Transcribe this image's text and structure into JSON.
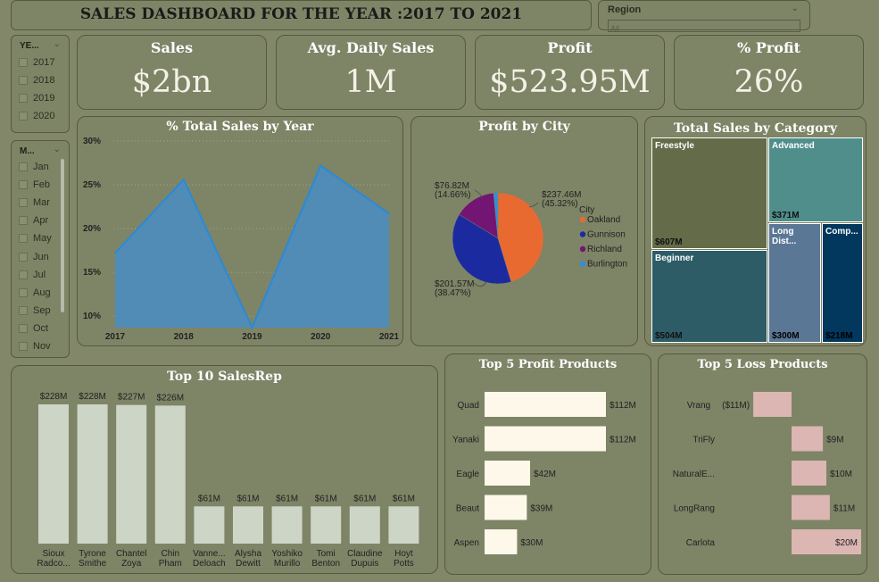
{
  "header": {
    "title": "SALES DASHBOARD FOR THE YEAR :2017 TO 2021"
  },
  "region": {
    "label": "Region",
    "value": "All"
  },
  "year_slicer": {
    "title": "YE...",
    "items": [
      "2017",
      "2018",
      "2019",
      "2020"
    ]
  },
  "month_slicer": {
    "title": "M...",
    "items": [
      "Jan",
      "Feb",
      "Mar",
      "Apr",
      "May",
      "Jun",
      "Jul",
      "Aug",
      "Sep",
      "Oct",
      "Nov"
    ]
  },
  "kpis": [
    {
      "title": "Sales",
      "value": "$2bn"
    },
    {
      "title": "Avg. Daily Sales",
      "value": "1M"
    },
    {
      "title": "Profit",
      "value": "$523.95M"
    },
    {
      "title": "% Profit",
      "value": "26%"
    }
  ],
  "colors": {
    "area": "#4f8cbc",
    "area_line": "#2a8ad8",
    "pie_oakland": "#e96a31",
    "pie_gunnison": "#1c2aa0",
    "pie_richland": "#731572",
    "pie_burlington": "#2e8fe0",
    "bars": "#cdd6c6",
    "profit_bars": "#fdf8ea",
    "loss_bars": "#dbb6b2"
  },
  "chart_data": [
    {
      "type": "area",
      "title": "% Total Sales by Year",
      "x": [
        "2017",
        "2018",
        "2019",
        "2020",
        "2021"
      ],
      "values": [
        17.2,
        25.6,
        8.7,
        27.2,
        21.7
      ],
      "ylim": [
        8.7,
        30
      ],
      "yticks": [
        "30%",
        "25%",
        "20%",
        "15%",
        "10%"
      ],
      "ytick_values": [
        30,
        25,
        20,
        15,
        10
      ],
      "grid": true
    },
    {
      "type": "pie",
      "title": "Profit by City",
      "legend_title": "City",
      "legend_position": "right",
      "slices": [
        {
          "name": "Oakland",
          "value": 237.46,
          "label": "$237.46M",
          "pct": "(45.32%)"
        },
        {
          "name": "Gunnison",
          "value": 201.57,
          "label": "$201.57M",
          "pct": "(38.47%)"
        },
        {
          "name": "Richland",
          "value": 76.82,
          "label": "$76.82M",
          "pct": "(14.66%)"
        },
        {
          "name": "Burlington",
          "value": 8.1,
          "label": "",
          "pct": ""
        }
      ]
    },
    {
      "type": "treemap",
      "title": "Total Sales by Category",
      "items": [
        {
          "name": "Freestyle",
          "value": 607,
          "label": "$607M",
          "color": "#646b48"
        },
        {
          "name": "Advanced",
          "value": 371,
          "label": "$371M",
          "color": "#4f8e8b"
        },
        {
          "name": "Beginner",
          "value": 504,
          "label": "$504M",
          "color": "#2d5c66"
        },
        {
          "name": "Long Dist...",
          "value": 300,
          "label": "$300M",
          "color": "#5a7796"
        },
        {
          "name": "Comp...",
          "value": 218,
          "label": "$218M",
          "color": "#02375e"
        }
      ]
    },
    {
      "type": "bar",
      "title": "Top 10 SalesRep",
      "categories": [
        [
          "Sioux",
          "Radco..."
        ],
        [
          "Tyrone",
          "Smithe"
        ],
        [
          "Chantel",
          "Zoya"
        ],
        [
          "Chin",
          "Pham"
        ],
        [
          "Vanne...",
          "Deloach"
        ],
        [
          "Alysha",
          "Dewitt"
        ],
        [
          "Yoshiko",
          "Murillo"
        ],
        [
          "Tomi",
          "Benton"
        ],
        [
          "Claudine",
          "Dupuis"
        ],
        [
          "Hoyt",
          "Potts"
        ]
      ],
      "values": [
        228,
        228,
        227,
        226,
        61,
        61,
        61,
        61,
        61,
        61
      ],
      "labels": [
        "$228M",
        "$228M",
        "$227M",
        "$226M",
        "$61M",
        "$61M",
        "$61M",
        "$61M",
        "$61M",
        "$61M"
      ]
    },
    {
      "type": "bar",
      "orientation": "horizontal",
      "title": "Top 5 Profit Products",
      "categories": [
        "Quad",
        "Yanaki",
        "Eagle",
        "Beaut",
        "Aspen"
      ],
      "values": [
        112,
        112,
        42,
        39,
        30
      ],
      "labels": [
        "$112M",
        "$112M",
        "$42M",
        "$39M",
        "$30M"
      ]
    },
    {
      "type": "bar",
      "orientation": "horizontal",
      "title": "Top 5 Loss Products",
      "categories": [
        "Vrang",
        "TriFly",
        "NaturalE...",
        "LongRang",
        "Carlota"
      ],
      "values": [
        -11,
        9,
        10,
        11,
        20
      ],
      "labels": [
        "($11M)",
        "$9M",
        "$10M",
        "$11M",
        "$20M"
      ]
    }
  ]
}
